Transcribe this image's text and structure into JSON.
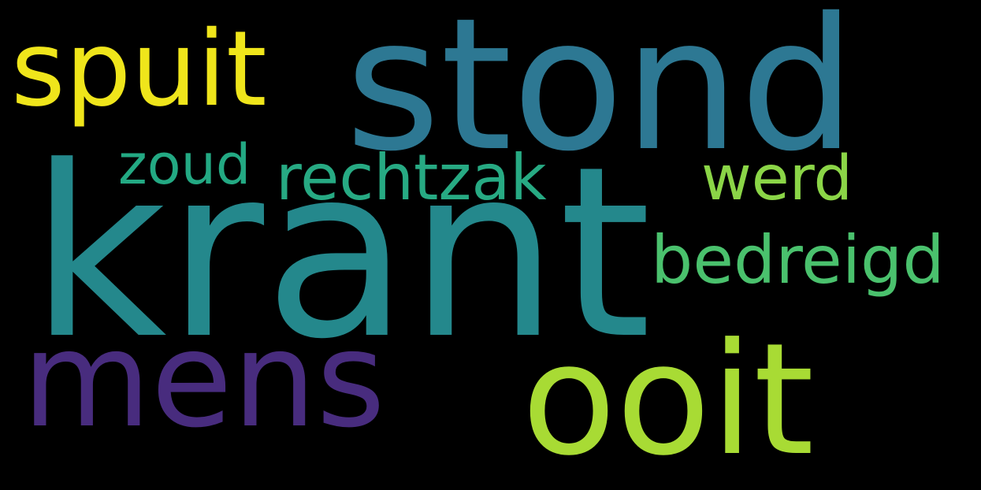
{
  "words": [
    {
      "key": "krant",
      "text": "krant",
      "color": "#24888C"
    },
    {
      "key": "stond",
      "text": "stond",
      "color": "#2D7893"
    },
    {
      "key": "spuit",
      "text": "spuit",
      "color": "#EFE51B"
    },
    {
      "key": "ooit",
      "text": "ooit",
      "color": "#A8DB34"
    },
    {
      "key": "mens",
      "text": "mens",
      "color": "#482C7E"
    },
    {
      "key": "bedreigd",
      "text": "bedreigd",
      "color": "#4AC16D"
    },
    {
      "key": "rechtzak",
      "text": "rechtzak",
      "color": "#27AA83"
    },
    {
      "key": "zoud",
      "text": "zoud",
      "color": "#23A983"
    },
    {
      "key": "werd",
      "text": "werd",
      "color": "#8BD547"
    }
  ],
  "background": "#000000"
}
